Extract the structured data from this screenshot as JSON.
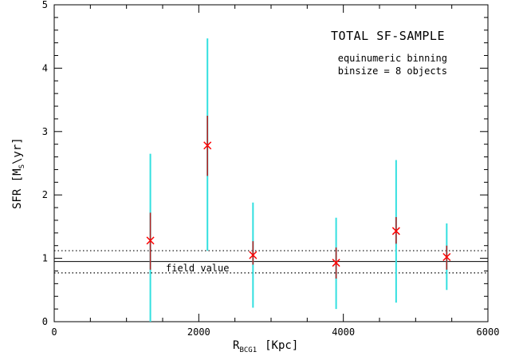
{
  "chart_data": {
    "type": "scatter",
    "title": "TOTAL SF-SAMPLE",
    "annotations": {
      "line1": "equinumeric binning",
      "line2": "binsize = 8 objects",
      "field_label": "field value"
    },
    "xlabel": {
      "main": "R",
      "sub": "BCG1",
      "unit": "[Kpc]"
    },
    "ylabel": {
      "main": "SFR  [M",
      "sub": "S",
      "unit": "\\yr]"
    },
    "xlim": [
      0,
      6000
    ],
    "ylim": [
      0,
      5
    ],
    "x_ticks": [
      "0",
      "2000",
      "4000",
      "6000"
    ],
    "y_ticks": [
      "0",
      "1",
      "2",
      "3",
      "4",
      "5"
    ],
    "points": [
      {
        "x": 1330,
        "y": 1.28,
        "err_lo": 0.82,
        "err_hi": 1.72,
        "range_lo": 0.0,
        "range_hi": 2.65
      },
      {
        "x": 2120,
        "y": 2.78,
        "err_lo": 2.3,
        "err_hi": 3.25,
        "range_lo": 1.12,
        "range_hi": 4.47
      },
      {
        "x": 2750,
        "y": 1.05,
        "err_lo": 0.9,
        "err_hi": 1.27,
        "range_lo": 0.22,
        "range_hi": 1.88
      },
      {
        "x": 3900,
        "y": 0.93,
        "err_lo": 0.68,
        "err_hi": 1.17,
        "range_lo": 0.2,
        "range_hi": 1.64
      },
      {
        "x": 4730,
        "y": 1.43,
        "err_lo": 1.23,
        "err_hi": 1.65,
        "range_lo": 0.3,
        "range_hi": 2.55
      },
      {
        "x": 5430,
        "y": 1.02,
        "err_lo": 0.82,
        "err_hi": 1.2,
        "range_lo": 0.5,
        "range_hi": 1.55
      }
    ],
    "field_value": 0.95,
    "field_band": [
      0.77,
      1.12
    ],
    "colors": {
      "marker": "#ff0000",
      "error_bar": "#b22222",
      "range_bar": "#33e0e0",
      "axis": "#000000"
    }
  }
}
